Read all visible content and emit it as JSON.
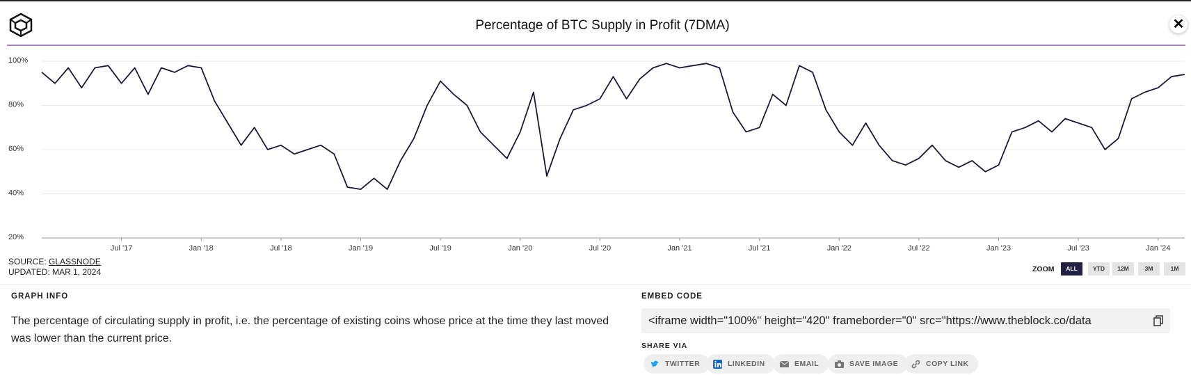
{
  "chart_data": {
    "type": "line",
    "title": "Percentage of BTC Supply in Profit (7DMA)",
    "color": "#1c1838",
    "x": [
      "2017-01",
      "2017-02",
      "2017-03",
      "2017-04",
      "2017-05",
      "2017-06",
      "2017-07",
      "2017-08",
      "2017-09",
      "2017-10",
      "2017-11",
      "2017-12",
      "2018-01",
      "2018-02",
      "2018-03",
      "2018-04",
      "2018-05",
      "2018-06",
      "2018-07",
      "2018-08",
      "2018-09",
      "2018-10",
      "2018-11",
      "2018-12",
      "2019-01",
      "2019-02",
      "2019-03",
      "2019-04",
      "2019-05",
      "2019-06",
      "2019-07",
      "2019-08",
      "2019-09",
      "2019-10",
      "2019-11",
      "2019-12",
      "2020-01",
      "2020-02",
      "2020-03",
      "2020-04",
      "2020-05",
      "2020-06",
      "2020-07",
      "2020-08",
      "2020-09",
      "2020-10",
      "2020-11",
      "2020-12",
      "2021-01",
      "2021-02",
      "2021-03",
      "2021-04",
      "2021-05",
      "2021-06",
      "2021-07",
      "2021-08",
      "2021-09",
      "2021-10",
      "2021-11",
      "2021-12",
      "2022-01",
      "2022-02",
      "2022-03",
      "2022-04",
      "2022-05",
      "2022-06",
      "2022-07",
      "2022-08",
      "2022-09",
      "2022-10",
      "2022-11",
      "2022-12",
      "2023-01",
      "2023-02",
      "2023-03",
      "2023-04",
      "2023-05",
      "2023-06",
      "2023-07",
      "2023-08",
      "2023-09",
      "2023-10",
      "2023-11",
      "2023-12",
      "2024-01",
      "2024-02",
      "2024-03"
    ],
    "values": [
      95,
      90,
      97,
      88,
      97,
      98,
      90,
      97,
      85,
      97,
      95,
      98,
      97,
      82,
      72,
      62,
      70,
      60,
      62,
      58,
      60,
      62,
      58,
      43,
      42,
      47,
      42,
      55,
      65,
      80,
      91,
      85,
      80,
      68,
      62,
      56,
      68,
      86,
      48,
      65,
      78,
      80,
      83,
      93,
      83,
      92,
      97,
      99,
      97,
      98,
      99,
      97,
      77,
      68,
      70,
      85,
      80,
      98,
      95,
      78,
      68,
      62,
      72,
      62,
      55,
      53,
      56,
      62,
      55,
      52,
      55,
      50,
      53,
      68,
      70,
      73,
      68,
      74,
      72,
      70,
      60,
      65,
      83,
      86,
      88,
      93,
      94
    ],
    "xlim": [
      "2017-01",
      "2024-03"
    ],
    "xticks": [
      {
        "value": "2017-07",
        "label": "Jul '17"
      },
      {
        "value": "2018-01",
        "label": "Jan '18"
      },
      {
        "value": "2018-07",
        "label": "Jul '18"
      },
      {
        "value": "2019-01",
        "label": "Jan '19"
      },
      {
        "value": "2019-07",
        "label": "Jul '19"
      },
      {
        "value": "2020-01",
        "label": "Jan '20"
      },
      {
        "value": "2020-07",
        "label": "Jul '20"
      },
      {
        "value": "2021-01",
        "label": "Jan '21"
      },
      {
        "value": "2021-07",
        "label": "Jul '21"
      },
      {
        "value": "2022-01",
        "label": "Jan '22"
      },
      {
        "value": "2022-07",
        "label": "Jul '22"
      },
      {
        "value": "2023-01",
        "label": "Jan '23"
      },
      {
        "value": "2023-07",
        "label": "Jul '23"
      },
      {
        "value": "2024-01",
        "label": "Jan '24"
      }
    ],
    "ylim": [
      20,
      100
    ],
    "yticks": [
      {
        "value": 20,
        "label": "20%"
      },
      {
        "value": 40,
        "label": "40%"
      },
      {
        "value": 60,
        "label": "60%"
      },
      {
        "value": 80,
        "label": "80%"
      },
      {
        "value": 100,
        "label": "100%"
      }
    ],
    "grid": true
  },
  "source": {
    "label": "SOURCE:",
    "name": "GLASSNODE",
    "updated": "UPDATED: MAR 1, 2024"
  },
  "zoom": {
    "label": "ZOOM",
    "options": [
      "ALL",
      "YTD",
      "12M",
      "3M",
      "1M"
    ],
    "active": 0
  },
  "graph_info": {
    "title": "GRAPH INFO",
    "text": "The percentage of circulating supply in profit, i.e. the percentage of existing coins whose price at the time they last moved was lower than the current price."
  },
  "embed": {
    "title": "EMBED CODE",
    "code": "<iframe width=\"100%\" height=\"420\" frameborder=\"0\" src=\"https://www.theblock.co/data"
  },
  "share": {
    "title": "SHARE VIA",
    "buttons": [
      "TWITTER",
      "LINKEDIN",
      "EMAIL",
      "SAVE IMAGE",
      "COPY LINK"
    ]
  }
}
